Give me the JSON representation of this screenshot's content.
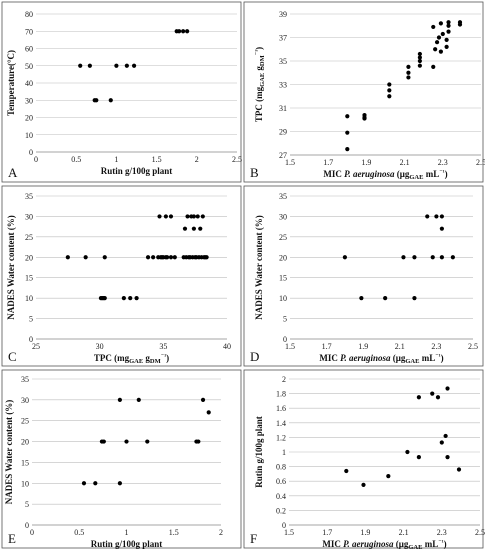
{
  "chart_data": [
    {
      "panel": "A",
      "type": "scatter",
      "xlabel": "Rutin g/100g plant",
      "ylabel": "Temperature(°C)",
      "xlim": [
        0,
        2.5
      ],
      "ylim": [
        0,
        80
      ],
      "xticks": [
        "0",
        "0.5",
        "1",
        "1.5",
        "2",
        "2.5"
      ],
      "yticks": [
        "0",
        "10",
        "20",
        "30",
        "40",
        "50",
        "60",
        "70",
        "80"
      ],
      "grid": "horizontal",
      "x": [
        0.55,
        0.67,
        0.73,
        0.75,
        0.93,
        1.0,
        1.13,
        1.22,
        1.75,
        1.78,
        1.83,
        1.88
      ],
      "y": [
        50,
        50,
        30,
        30,
        30,
        50,
        50,
        50,
        70,
        70,
        70,
        70
      ]
    },
    {
      "panel": "B",
      "type": "scatter",
      "xlabel": "MIC P. aeruginosa (μgGAE mL⁻¹)",
      "ylabel": "TPC (mgGAE gDM⁻¹)",
      "xlim": [
        1.5,
        2.5
      ],
      "ylim": [
        27,
        39
      ],
      "xticks": [
        "1.5",
        "1.7",
        "1.9",
        "2.1",
        "2.3",
        "2.5"
      ],
      "yticks": [
        "27",
        "29",
        "31",
        "33",
        "35",
        "37",
        "39"
      ],
      "grid": "horizontal",
      "x": [
        1.8,
        1.8,
        1.8,
        1.89,
        1.89,
        1.89,
        2.02,
        2.02,
        2.02,
        2.12,
        2.12,
        2.12,
        2.18,
        2.18,
        2.18,
        2.18,
        2.25,
        2.25,
        2.26,
        2.27,
        2.28,
        2.29,
        2.29,
        2.3,
        2.32,
        2.32,
        2.33,
        2.33,
        2.33,
        2.39,
        2.39
      ],
      "y": [
        27.5,
        28.9,
        30.3,
        30.1,
        30.2,
        30.4,
        32.0,
        32.5,
        33.0,
        33.6,
        34.0,
        34.5,
        34.6,
        35.0,
        35.3,
        35.6,
        34.5,
        37.9,
        36.0,
        36.6,
        37.0,
        35.8,
        38.2,
        37.3,
        36.2,
        36.8,
        37.5,
        38.0,
        38.3,
        38.1,
        38.3
      ]
    },
    {
      "panel": "C",
      "type": "scatter",
      "xlabel": "TPC (mgGAE gDM⁻¹)",
      "ylabel": "NADES Water content (%)",
      "xlim": [
        25,
        40
      ],
      "ylim": [
        0,
        35
      ],
      "xticks": [
        "25",
        "30",
        "35",
        "40"
      ],
      "yticks": [
        "0",
        "5",
        "10",
        "15",
        "20",
        "25",
        "30",
        "35"
      ],
      "grid": "horizontal",
      "x": [
        27.5,
        28.9,
        30.1,
        30.2,
        30.3,
        30.4,
        30.4,
        31.9,
        32.4,
        32.9,
        33.8,
        34.2,
        34.6,
        34.8,
        34.9,
        35.0,
        35.2,
        35.3,
        35.6,
        35.9,
        36.6,
        36.8,
        37.0,
        37.1,
        37.3,
        37.5,
        37.6,
        37.8,
        38.0,
        38.2,
        38.3,
        38.4,
        34.7,
        35.2,
        35.6,
        36.9,
        37.2,
        37.4,
        37.7,
        38.1,
        36.7,
        37.4,
        37.9
      ],
      "y": [
        20,
        20,
        10,
        10,
        10,
        10,
        20,
        10,
        10,
        10,
        20,
        20,
        20,
        20,
        20,
        20,
        20,
        20,
        20,
        20,
        20,
        20,
        20,
        20,
        20,
        20,
        20,
        20,
        20,
        20,
        20,
        20,
        30,
        30,
        30,
        30,
        30,
        30,
        30,
        30,
        27,
        27,
        27
      ]
    },
    {
      "panel": "D",
      "type": "scatter",
      "xlabel": "MIC P. aeruginosa (μgGAE mL⁻¹)",
      "ylabel": "NADES Water content (%)",
      "xlim": [
        1.5,
        2.5
      ],
      "ylim": [
        0,
        35
      ],
      "xticks": [
        "1.5",
        "1.7",
        "1.9",
        "2.1",
        "2.3",
        "2.5"
      ],
      "yticks": [
        "0",
        "5",
        "10",
        "15",
        "20",
        "25",
        "30",
        "35"
      ],
      "grid": "horizontal",
      "x": [
        1.8,
        1.89,
        2.02,
        2.12,
        2.18,
        2.18,
        2.25,
        2.28,
        2.3,
        2.33,
        2.33,
        2.33,
        2.39
      ],
      "y": [
        20,
        10,
        10,
        20,
        20,
        10,
        30,
        20,
        30,
        30,
        27,
        20,
        20
      ]
    },
    {
      "panel": "E",
      "type": "scatter",
      "xlabel": "Rutin g/100g plant",
      "ylabel": "NADES Water content (%)",
      "xlim": [
        0,
        2
      ],
      "ylim": [
        0,
        35
      ],
      "xticks": [
        "0",
        "0.5",
        "1",
        "1.5",
        "2"
      ],
      "yticks": [
        "0",
        "5",
        "10",
        "15",
        "20",
        "25",
        "30",
        "35"
      ],
      "grid": "horizontal",
      "x": [
        0.55,
        0.67,
        0.74,
        0.76,
        0.93,
        0.93,
        1.0,
        1.13,
        1.22,
        1.74,
        1.76,
        1.81,
        1.87
      ],
      "y": [
        10,
        10,
        20,
        20,
        30,
        10,
        20,
        30,
        20,
        20,
        20,
        30,
        27
      ]
    },
    {
      "panel": "F",
      "type": "scatter",
      "xlabel": "MIC P. aeruginosa (μgGAE mL⁻¹)",
      "ylabel": "Rutin g/100g plant",
      "xlim": [
        1.5,
        2.5
      ],
      "ylim": [
        0,
        2
      ],
      "xticks": [
        "1.5",
        "1.7",
        "1.9",
        "2.1",
        "2.3",
        "2.5"
      ],
      "yticks": [
        "0",
        "0.2",
        "0.4",
        "0.6",
        "0.8",
        "1",
        "1.2",
        "1.4",
        "1.6",
        "1.8",
        "2"
      ],
      "grid": "horizontal",
      "x": [
        1.8,
        1.89,
        2.02,
        2.12,
        2.18,
        2.18,
        2.25,
        2.28,
        2.3,
        2.32,
        2.33,
        2.33,
        2.39
      ],
      "y": [
        0.74,
        0.55,
        0.67,
        1.0,
        1.75,
        0.93,
        1.8,
        1.75,
        1.13,
        1.22,
        1.87,
        0.93,
        0.76
      ]
    }
  ]
}
